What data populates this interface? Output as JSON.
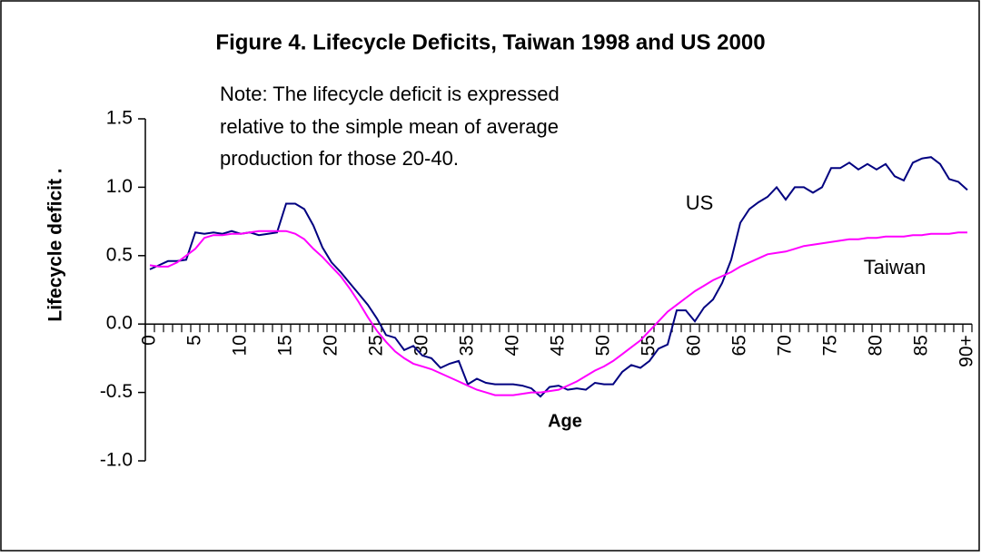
{
  "chart_data": {
    "type": "line",
    "title": "Figure 4. Lifecycle Deficits, Taiwan 1998 and US 2000",
    "note": [
      "Note: The lifecycle deficit is expressed",
      "relative to the simple mean of average",
      "production for those 20-40."
    ],
    "y_label": "Lifecycle deficit  .",
    "x_label": "Age",
    "categories": [
      "0",
      null,
      null,
      null,
      null,
      "5",
      null,
      null,
      null,
      null,
      "10",
      null,
      null,
      null,
      null,
      "15",
      null,
      null,
      null,
      null,
      "20",
      null,
      null,
      null,
      null,
      "25",
      null,
      null,
      null,
      null,
      "30",
      null,
      null,
      null,
      null,
      "35",
      null,
      null,
      null,
      null,
      "40",
      null,
      null,
      null,
      null,
      "45",
      null,
      null,
      null,
      null,
      "50",
      null,
      null,
      null,
      null,
      "55",
      null,
      null,
      null,
      null,
      "60",
      null,
      null,
      null,
      null,
      "65",
      null,
      null,
      null,
      null,
      "70",
      null,
      null,
      null,
      null,
      "75",
      null,
      null,
      null,
      null,
      "80",
      null,
      null,
      null,
      null,
      "85",
      null,
      null,
      null,
      null,
      "90+"
    ],
    "series": [
      {
        "name": "US",
        "color": "#000080",
        "values": [
          0.4,
          0.43,
          0.46,
          0.46,
          0.47,
          0.67,
          0.66,
          0.67,
          0.66,
          0.68,
          0.66,
          0.67,
          0.65,
          0.66,
          0.67,
          0.88,
          0.88,
          0.84,
          0.72,
          0.56,
          0.45,
          0.38,
          0.3,
          0.22,
          0.14,
          0.04,
          -0.08,
          -0.1,
          -0.19,
          -0.16,
          -0.23,
          -0.25,
          -0.32,
          -0.29,
          -0.27,
          -0.44,
          -0.4,
          -0.43,
          -0.44,
          -0.44,
          -0.44,
          -0.45,
          -0.47,
          -0.53,
          -0.46,
          -0.45,
          -0.48,
          -0.47,
          -0.48,
          -0.43,
          -0.44,
          -0.44,
          -0.35,
          -0.3,
          -0.32,
          -0.27,
          -0.18,
          -0.15,
          0.1,
          0.1,
          0.02,
          0.12,
          0.18,
          0.3,
          0.47,
          0.74,
          0.84,
          0.89,
          0.93,
          1.0,
          0.91,
          1.0,
          1.0,
          0.96,
          1.0,
          1.14,
          1.14,
          1.18,
          1.13,
          1.17,
          1.13,
          1.17,
          1.08,
          1.05,
          1.18,
          1.21,
          1.22,
          1.17,
          1.06,
          1.04,
          0.98
        ]
      },
      {
        "name": "Taiwan",
        "color": "#ff00ff",
        "values": [
          0.43,
          0.42,
          0.42,
          0.45,
          0.5,
          0.55,
          0.63,
          0.65,
          0.65,
          0.66,
          0.66,
          0.67,
          0.68,
          0.68,
          0.68,
          0.68,
          0.66,
          0.62,
          0.55,
          0.49,
          0.42,
          0.35,
          0.26,
          0.16,
          0.05,
          -0.05,
          -0.13,
          -0.2,
          -0.25,
          -0.29,
          -0.31,
          -0.33,
          -0.36,
          -0.39,
          -0.42,
          -0.45,
          -0.48,
          -0.5,
          -0.52,
          -0.52,
          -0.52,
          -0.51,
          -0.5,
          -0.5,
          -0.49,
          -0.48,
          -0.45,
          -0.42,
          -0.38,
          -0.34,
          -0.31,
          -0.27,
          -0.22,
          -0.17,
          -0.12,
          -0.05,
          0.02,
          0.09,
          0.14,
          0.19,
          0.24,
          0.28,
          0.32,
          0.35,
          0.38,
          0.42,
          0.45,
          0.48,
          0.51,
          0.52,
          0.53,
          0.55,
          0.57,
          0.58,
          0.59,
          0.6,
          0.61,
          0.62,
          0.62,
          0.63,
          0.63,
          0.64,
          0.64,
          0.64,
          0.65,
          0.65,
          0.66,
          0.66,
          0.66,
          0.67,
          0.67
        ]
      }
    ],
    "ylim": [
      -1,
      1.5
    ],
    "yticks": [
      1.5,
      {
        "value": 1,
        "label": "1.0"
      },
      0.5,
      {
        "value": 0,
        "label": "0.0"
      },
      -0.5,
      {
        "value": -1,
        "label": "-1.0"
      }
    ]
  }
}
